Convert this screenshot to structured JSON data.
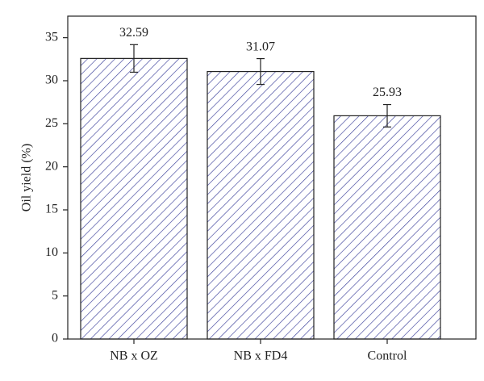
{
  "chart_data": {
    "type": "bar",
    "y_label": "Oil yield (%)",
    "categories": [
      "NB x OZ",
      "NB x FD4",
      "Control"
    ],
    "values": [
      32.59,
      31.07,
      25.93
    ],
    "errors": [
      1.6,
      1.5,
      1.3
    ],
    "color": "#3a3f9a",
    "ylim": [
      0,
      37.5
    ],
    "yticks": [
      0,
      5,
      10,
      15,
      20,
      25,
      30,
      35
    ],
    "grid": false
  }
}
